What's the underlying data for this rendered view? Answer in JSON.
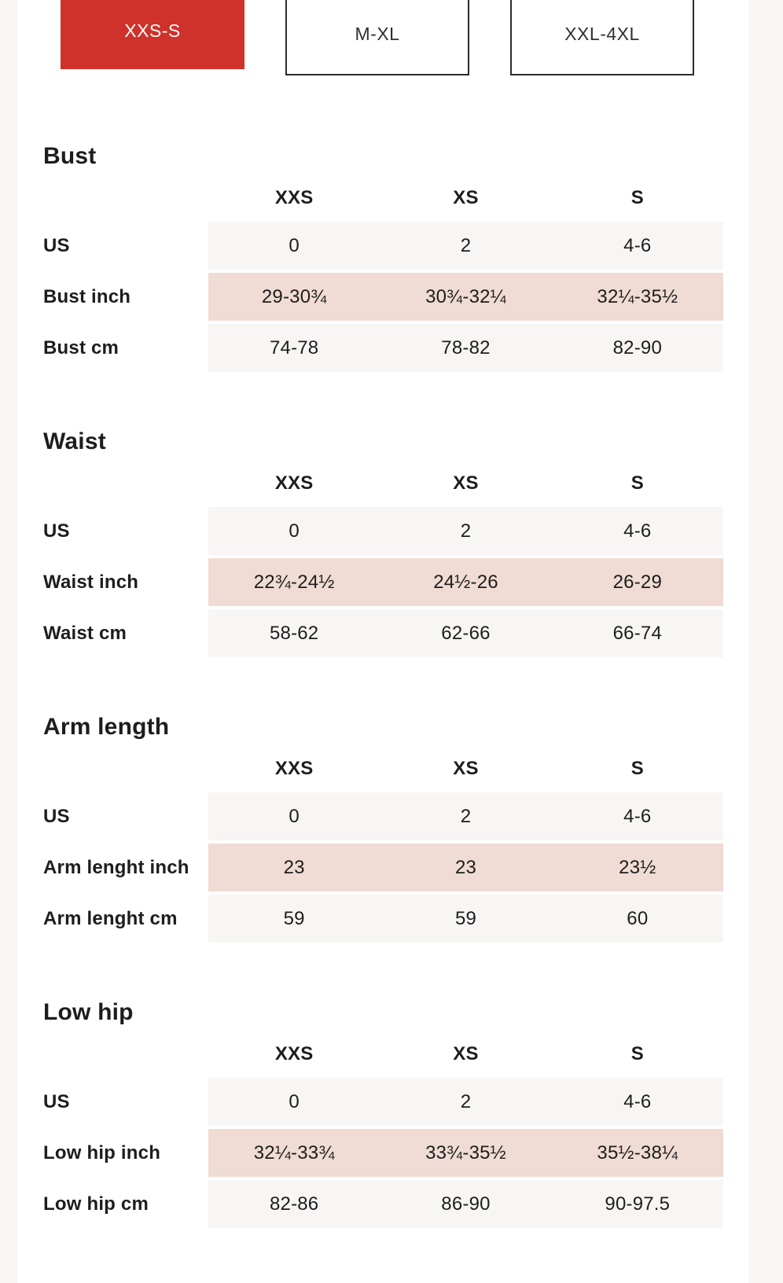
{
  "colors": {
    "accent_red": "#ce322a",
    "row_pink": "#f0dcd4",
    "row_gray": "#f7f6f4",
    "page_bg": "#f9f7f5",
    "panel_bg": "#ffffff",
    "text": "#1d1d1d"
  },
  "size_tabs": [
    {
      "label": "XXS-S",
      "active": true
    },
    {
      "label": "M-XL",
      "active": false
    },
    {
      "label": "XXL-4XL",
      "active": false
    }
  ],
  "sections": [
    {
      "title": "Bust",
      "columns": [
        "XXS",
        "XS",
        "S"
      ],
      "rows": [
        {
          "label": "US",
          "values": [
            "0",
            "2",
            "4-6"
          ],
          "shade": "gray"
        },
        {
          "label": "Bust inch",
          "values": [
            "29-30¾",
            "30¾-32¼",
            "32¼-35½"
          ],
          "shade": "pink"
        },
        {
          "label": "Bust cm",
          "values": [
            "74-78",
            "78-82",
            "82-90"
          ],
          "shade": "gray"
        }
      ]
    },
    {
      "title": "Waist",
      "columns": [
        "XXS",
        "XS",
        "S"
      ],
      "rows": [
        {
          "label": "US",
          "values": [
            "0",
            "2",
            "4-6"
          ],
          "shade": "gray"
        },
        {
          "label": "Waist inch",
          "values": [
            "22¾-24½",
            "24½-26",
            "26-29"
          ],
          "shade": "pink"
        },
        {
          "label": "Waist cm",
          "values": [
            "58-62",
            "62-66",
            "66-74"
          ],
          "shade": "gray"
        }
      ]
    },
    {
      "title": "Arm length",
      "columns": [
        "XXS",
        "XS",
        "S"
      ],
      "rows": [
        {
          "label": "US",
          "values": [
            "0",
            "2",
            "4-6"
          ],
          "shade": "gray"
        },
        {
          "label": "Arm lenght inch",
          "values": [
            "23",
            "23",
            "23½"
          ],
          "shade": "pink"
        },
        {
          "label": "Arm lenght cm",
          "values": [
            "59",
            "59",
            "60"
          ],
          "shade": "gray"
        }
      ]
    },
    {
      "title": "Low hip",
      "columns": [
        "XXS",
        "XS",
        "S"
      ],
      "rows": [
        {
          "label": "US",
          "values": [
            "0",
            "2",
            "4-6"
          ],
          "shade": "gray"
        },
        {
          "label": "Low hip inch",
          "values": [
            "32¼-33¾",
            "33¾-35½",
            "35½-38¼"
          ],
          "shade": "pink"
        },
        {
          "label": "Low hip cm",
          "values": [
            "82-86",
            "86-90",
            "90-97.5"
          ],
          "shade": "gray"
        }
      ]
    }
  ]
}
